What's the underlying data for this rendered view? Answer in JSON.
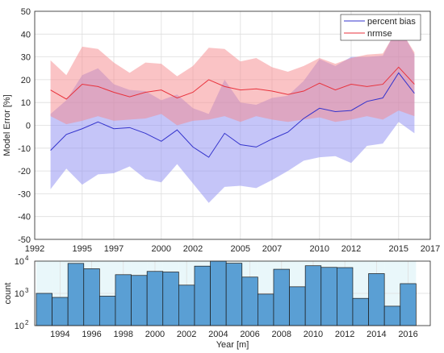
{
  "chart_data": [
    {
      "type": "line",
      "xlabel": "",
      "ylabel": "Model Error [%]",
      "xlim": [
        1992,
        2017
      ],
      "ylim": [
        -50,
        50
      ],
      "xticks": [
        1992,
        1995,
        1997,
        2000,
        2002,
        2005,
        2007,
        2010,
        2012,
        2015,
        2017
      ],
      "yticks": [
        -50,
        -40,
        -30,
        -20,
        -10,
        0,
        10,
        20,
        30,
        40,
        50
      ],
      "grid": true,
      "legend_position": "top-right",
      "colors": {
        "bias": "#3333cc",
        "bias_fill": "#8c8cf2",
        "nrmse": "#e8323c",
        "nrmse_fill": "#f5878c"
      },
      "x": [
        1993,
        1994,
        1995,
        1996,
        1997,
        1998,
        1999,
        2000,
        2001,
        2002,
        2003,
        2004,
        2005,
        2006,
        2007,
        2008,
        2009,
        2010,
        2011,
        2012,
        2013,
        2014,
        2015,
        2016
      ],
      "series": [
        {
          "name": "percent bias",
          "values": [
            -11,
            -4,
            -1.5,
            1.5,
            -1.5,
            -1,
            -3.5,
            -7,
            -2,
            -9.5,
            -14,
            -3.5,
            -8.5,
            -9.5,
            -6,
            -3,
            3,
            7.5,
            6,
            6.5,
            10.5,
            12,
            23,
            14
          ],
          "lower": [
            -28,
            -19,
            -26,
            -21.5,
            -21,
            -18,
            -23.5,
            -25,
            -17,
            -25.5,
            -34,
            -27,
            -26.5,
            -27.5,
            -24,
            -20,
            -15.5,
            -14,
            -13.5,
            -16.5,
            -9,
            -8,
            1.5,
            -3.5
          ],
          "upper": [
            5,
            11,
            22,
            25,
            18,
            15.5,
            15,
            11,
            13.5,
            7.5,
            5,
            20,
            10,
            9,
            12,
            13,
            19.5,
            29,
            26,
            30,
            30,
            30.5,
            44,
            31
          ]
        },
        {
          "name": "nrmse",
          "values": [
            15.5,
            11.5,
            18,
            17,
            14.5,
            12.5,
            14.5,
            15.5,
            12,
            14.5,
            20,
            17,
            15.5,
            16,
            15,
            13.5,
            15,
            18.5,
            15.5,
            18,
            17,
            18,
            25.5,
            18
          ],
          "lower": [
            4,
            0.5,
            2,
            4,
            2,
            2.5,
            3,
            5,
            0,
            2,
            2.5,
            4,
            1.5,
            4,
            2.5,
            1.5,
            2.5,
            3.5,
            1.5,
            2.5,
            4,
            2.5,
            6.5,
            4
          ],
          "upper": [
            28.5,
            22,
            34.5,
            33.5,
            27.5,
            23,
            27.5,
            27,
            21.5,
            26,
            34,
            33.5,
            28,
            29.5,
            25.5,
            23.5,
            26,
            29.5,
            27,
            29.5,
            31,
            31.5,
            43,
            32
          ]
        }
      ]
    },
    {
      "type": "bar",
      "xlabel": "Year [m]",
      "ylabel": "count",
      "yscale": "log",
      "xlim": [
        1992.4,
        2017.4
      ],
      "ylim": [
        100,
        10000
      ],
      "xticks": [
        1994,
        1996,
        1998,
        2000,
        2002,
        2004,
        2006,
        2008,
        2010,
        2012,
        2014,
        2016
      ],
      "yticks": [
        100,
        1000,
        10000
      ],
      "ytick_labels": [
        {
          "base": "10",
          "exp": "2"
        },
        {
          "base": "10",
          "exp": "3"
        },
        {
          "base": "10",
          "exp": "4"
        }
      ],
      "grid": true,
      "colors": {
        "bar": "#5a9fd4",
        "edge": "#1a1a1a",
        "shade": "#d7f0f5"
      },
      "categories": [
        1993,
        1994,
        1995,
        1996,
        1997,
        1998,
        1999,
        2000,
        2001,
        2002,
        2003,
        2004,
        2005,
        2006,
        2007,
        2008,
        2009,
        2010,
        2011,
        2012,
        2013,
        2014,
        2015,
        2016
      ],
      "values": [
        1000,
        750,
        8500,
        5800,
        820,
        3800,
        3600,
        4800,
        4600,
        1800,
        7000,
        10000,
        8600,
        3200,
        950,
        5600,
        1600,
        7200,
        6400,
        6300,
        700,
        4100,
        400,
        2000
      ]
    }
  ]
}
